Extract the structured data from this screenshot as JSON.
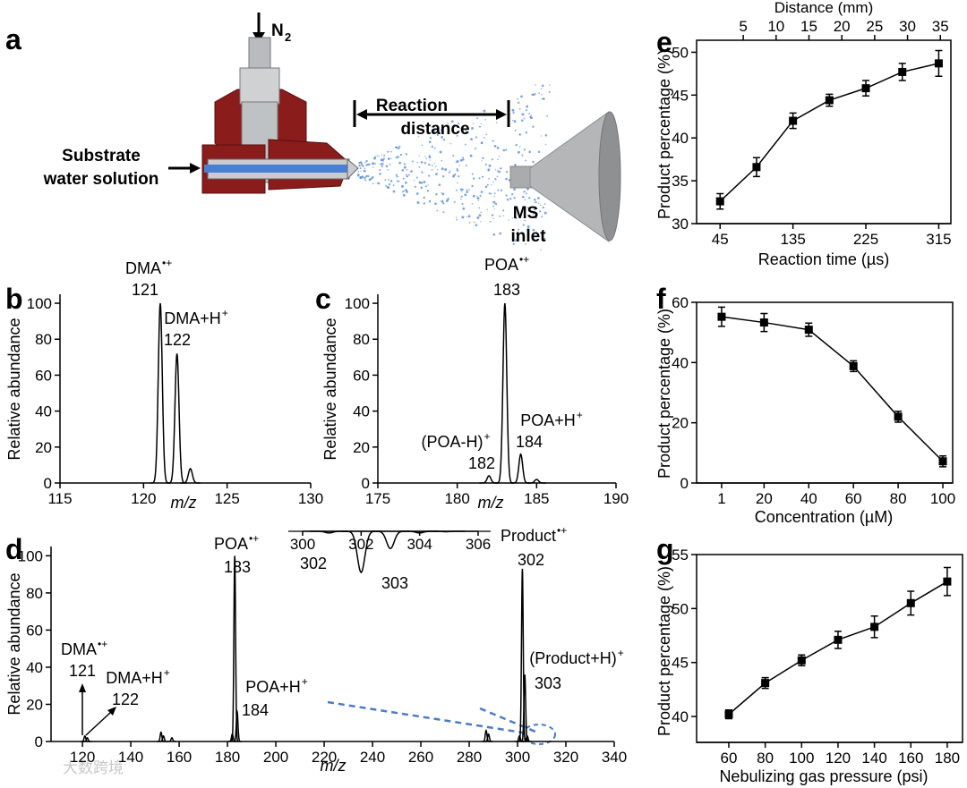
{
  "diagram": {
    "panel": "a",
    "gas": "N",
    "gas_sub": "2",
    "inlet_label": [
      "Substrate",
      "water solution"
    ],
    "distance_label": [
      "Reaction",
      "distance"
    ],
    "ms_label": [
      "MS",
      "inlet"
    ]
  },
  "watermark": "大数跨境",
  "chart_data": [
    {
      "type": "spectrum",
      "panel": "b",
      "x": [
        121,
        122,
        122.8
      ],
      "values": [
        100,
        72,
        8
      ],
      "peak_labels": [
        {
          "text": "DMA",
          "sup": "•+"
        },
        {
          "text": "DMA+H",
          "sup": "+"
        },
        null
      ],
      "xlim": [
        115,
        130
      ],
      "xticks": [
        115,
        120,
        125,
        130
      ],
      "ylim": [
        0,
        105
      ],
      "yticks": [
        0,
        20,
        40,
        60,
        80,
        100
      ],
      "xlabel": "m/z",
      "ylabel": "Relative abundance"
    },
    {
      "type": "spectrum",
      "panel": "c",
      "x": [
        182,
        183,
        184,
        185
      ],
      "values": [
        4,
        100,
        16,
        2
      ],
      "peak_labels": [
        {
          "text": "(POA-H)",
          "sup": "+"
        },
        {
          "text": "POA",
          "sup": "•+"
        },
        {
          "text": "POA+H",
          "sup": "+"
        },
        null
      ],
      "xlim": [
        175,
        190
      ],
      "xticks": [
        175,
        180,
        185,
        190
      ],
      "ylim": [
        0,
        105
      ],
      "yticks": [
        0,
        20,
        40,
        60,
        80,
        100
      ],
      "xlabel": "m/z",
      "ylabel": "Relative abundance"
    },
    {
      "type": "spectrum",
      "panel": "d",
      "x": [
        121,
        122,
        152.5,
        153.5,
        157,
        182,
        183,
        184,
        287,
        288,
        300.8,
        302,
        303,
        304
      ],
      "values": [
        3,
        2,
        5,
        3,
        2,
        4,
        100,
        16,
        6,
        4,
        3,
        93,
        36,
        3
      ],
      "peak_labels": [
        {
          "text": "DMA",
          "sup": "•+"
        },
        {
          "text": "DMA+H",
          "sup": "+"
        },
        null,
        null,
        null,
        null,
        {
          "text": "POA",
          "sup": "•+"
        },
        {
          "text": "POA+H",
          "sup": "+"
        },
        null,
        null,
        null,
        {
          "text": "Product",
          "sup": "•+"
        },
        {
          "text": "(Product+H)",
          "sup": "+"
        },
        null
      ],
      "xlim": [
        107,
        340
      ],
      "xticks": [
        120,
        140,
        160,
        180,
        200,
        220,
        240,
        260,
        280,
        300,
        320,
        340
      ],
      "ylim": [
        0,
        105
      ],
      "yticks": [
        0,
        20,
        40,
        60,
        80,
        100
      ],
      "xlabel": "m/z",
      "ylabel": "Relative abundance"
    },
    {
      "type": "spectrum",
      "panel": "d-inset",
      "x": [
        300.9,
        302,
        303,
        304,
        304.9
      ],
      "values": [
        4,
        100,
        42,
        4,
        1
      ],
      "xlim": [
        300,
        306
      ],
      "xticks": [
        300,
        302,
        304,
        306
      ],
      "ylim": [
        0,
        100
      ]
    },
    {
      "type": "line",
      "panel": "e",
      "x": [
        45,
        90,
        135,
        180,
        225,
        270,
        315
      ],
      "values": [
        32.6,
        36.6,
        42.0,
        44.4,
        45.8,
        47.7,
        48.7
      ],
      "errors": [
        0.9,
        1.1,
        0.9,
        0.7,
        0.9,
        1.0,
        1.5
      ],
      "xlim": [
        16,
        330
      ],
      "xticks": [
        45,
        135,
        225,
        315
      ],
      "ylim": [
        30,
        51.4
      ],
      "yticks": [
        30,
        35,
        40,
        45,
        50
      ],
      "x2lim": [
        -2.1,
        36.6
      ],
      "x2ticks": [
        5,
        10,
        15,
        20,
        25,
        30,
        35
      ],
      "x2label": "Distance (mm)",
      "xlabel": "Reaction time (µs)",
      "ylabel": "Product percentage (%)",
      "color": "#000000"
    },
    {
      "type": "line",
      "panel": "f",
      "x": [
        1,
        20,
        40,
        60,
        80,
        100
      ],
      "values": [
        55.2,
        53.3,
        50.9,
        38.8,
        22.0,
        7.2
      ],
      "errors": [
        3.2,
        3.0,
        2.2,
        1.8,
        1.8,
        1.8
      ],
      "xlim": [
        -10.2,
        104.4
      ],
      "xticks": [
        1,
        20,
        40,
        60,
        80,
        100
      ],
      "ylim": [
        0,
        60
      ],
      "yticks": [
        0,
        20,
        40,
        60
      ],
      "xlabel": "Concentration (µM)",
      "ylabel": "Product percentage (%)",
      "color": "#000000"
    },
    {
      "type": "line",
      "panel": "g",
      "x": [
        60,
        80,
        100,
        120,
        140,
        160,
        180
      ],
      "values": [
        40.2,
        43.1,
        45.2,
        47.1,
        48.3,
        50.5,
        52.5
      ],
      "errors": [
        0.4,
        0.5,
        0.5,
        0.8,
        1.0,
        1.1,
        1.3
      ],
      "xlim": [
        42.3,
        188.4
      ],
      "xticks": [
        60,
        80,
        100,
        120,
        140,
        160,
        180
      ],
      "ylim": [
        37.6,
        55
      ],
      "yticks": [
        40,
        45,
        50,
        55
      ],
      "xlabel": "Nebulizing gas pressure (psi)",
      "ylabel": "Product percentage (%)",
      "color": "#000000"
    }
  ]
}
